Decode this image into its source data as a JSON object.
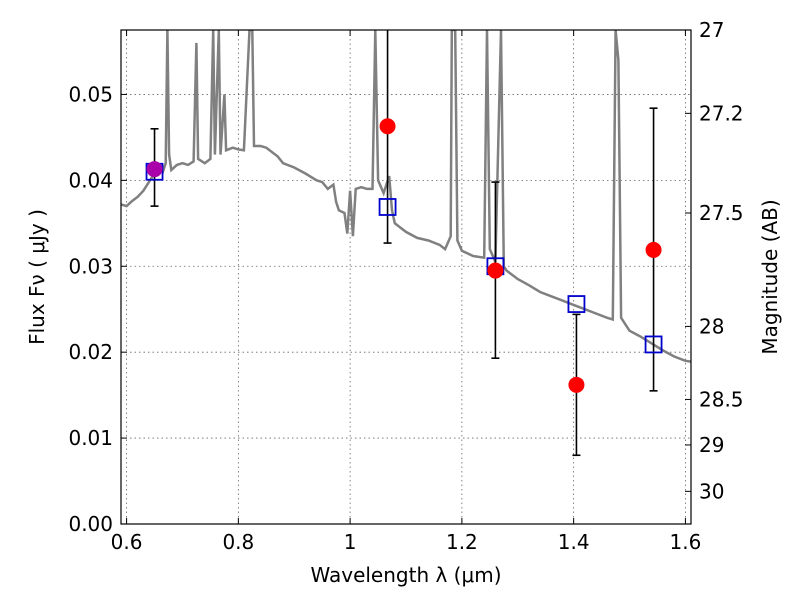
{
  "chart_data": {
    "type": "scatter",
    "xlabel": "Wavelength  λ (μm)",
    "ylabel_left": "Flux  Fν  ( μJy )",
    "ylabel_right": "Magnitude (AB)",
    "xlim": [
      0.59,
      1.61
    ],
    "ylim": [
      0,
      0.0575
    ],
    "grid": true,
    "x_ticks": [
      0.6,
      0.8,
      1.0,
      1.2,
      1.4,
      1.6
    ],
    "x_tick_labels": [
      "0.6",
      "0.8",
      "1",
      "1.2",
      "1.4",
      "1.6"
    ],
    "y_ticks": [
      0,
      0.01,
      0.02,
      0.03,
      0.04,
      0.05
    ],
    "y_tick_labels": [
      "0.00",
      "0.01",
      "0.02",
      "0.03",
      "0.04",
      "0.05"
    ],
    "right_ticks": [
      {
        "flux": 0.0575,
        "label": "27"
      },
      {
        "flux": 0.0478,
        "label": "27.2"
      },
      {
        "flux": 0.0362,
        "label": "27.5"
      },
      {
        "flux": 0.023,
        "label": "28"
      },
      {
        "flux": 0.0145,
        "label": "28.5"
      },
      {
        "flux": 0.0092,
        "label": "29"
      },
      {
        "flux": 0.0038,
        "label": "30"
      }
    ],
    "model_spectrum": {
      "color": "#808080",
      "points": [
        [
          0.59,
          0.0372
        ],
        [
          0.6,
          0.037
        ],
        [
          0.61,
          0.0376
        ],
        [
          0.62,
          0.0381
        ],
        [
          0.63,
          0.0388
        ],
        [
          0.64,
          0.0398
        ],
        [
          0.65,
          0.0408
        ],
        [
          0.655,
          0.0407
        ],
        [
          0.66,
          0.0414
        ],
        [
          0.665,
          0.041
        ],
        [
          0.67,
          0.042
        ],
        [
          0.673,
          0.0575
        ],
        [
          0.676,
          0.043
        ],
        [
          0.68,
          0.0412
        ],
        [
          0.69,
          0.0418
        ],
        [
          0.7,
          0.042
        ],
        [
          0.71,
          0.0418
        ],
        [
          0.72,
          0.0422
        ],
        [
          0.725,
          0.056
        ],
        [
          0.728,
          0.0425
        ],
        [
          0.74,
          0.042
        ],
        [
          0.75,
          0.0425
        ],
        [
          0.755,
          0.0575
        ],
        [
          0.758,
          0.043
        ],
        [
          0.765,
          0.0575
        ],
        [
          0.768,
          0.043
        ],
        [
          0.775,
          0.05
        ],
        [
          0.778,
          0.0435
        ],
        [
          0.79,
          0.0438
        ],
        [
          0.8,
          0.0436
        ],
        [
          0.81,
          0.0435
        ],
        [
          0.82,
          0.0575
        ],
        [
          0.825,
          0.0575
        ],
        [
          0.828,
          0.044
        ],
        [
          0.84,
          0.044
        ],
        [
          0.85,
          0.0438
        ],
        [
          0.87,
          0.0428
        ],
        [
          0.88,
          0.042
        ],
        [
          0.9,
          0.0415
        ],
        [
          0.92,
          0.0408
        ],
        [
          0.94,
          0.04
        ],
        [
          0.95,
          0.0398
        ],
        [
          0.96,
          0.039
        ],
        [
          0.97,
          0.0395
        ],
        [
          0.975,
          0.0375
        ],
        [
          0.98,
          0.0365
        ],
        [
          0.99,
          0.0362
        ],
        [
          0.995,
          0.0338
        ],
        [
          1.0,
          0.0388
        ],
        [
          1.005,
          0.0335
        ],
        [
          1.01,
          0.039
        ],
        [
          1.02,
          0.0392
        ],
        [
          1.03,
          0.039
        ],
        [
          1.04,
          0.039
        ],
        [
          1.045,
          0.0575
        ],
        [
          1.05,
          0.04
        ],
        [
          1.06,
          0.0385
        ],
        [
          1.07,
          0.0405
        ],
        [
          1.075,
          0.0365
        ],
        [
          1.08,
          0.035
        ],
        [
          1.09,
          0.0345
        ],
        [
          1.1,
          0.034
        ],
        [
          1.12,
          0.0333
        ],
        [
          1.14,
          0.033
        ],
        [
          1.16,
          0.0325
        ],
        [
          1.17,
          0.032
        ],
        [
          1.18,
          0.0335
        ],
        [
          1.182,
          0.0575
        ],
        [
          1.188,
          0.0575
        ],
        [
          1.192,
          0.033
        ],
        [
          1.2,
          0.0318
        ],
        [
          1.22,
          0.0312
        ],
        [
          1.24,
          0.031
        ],
        [
          1.245,
          0.0575
        ],
        [
          1.25,
          0.032
        ],
        [
          1.26,
          0.0305
        ],
        [
          1.27,
          0.0575
        ],
        [
          1.275,
          0.03
        ],
        [
          1.28,
          0.0295
        ],
        [
          1.3,
          0.0285
        ],
        [
          1.32,
          0.0278
        ],
        [
          1.34,
          0.027
        ],
        [
          1.36,
          0.0265
        ],
        [
          1.38,
          0.026
        ],
        [
          1.4,
          0.0255
        ],
        [
          1.42,
          0.025
        ],
        [
          1.44,
          0.0245
        ],
        [
          1.46,
          0.024
        ],
        [
          1.47,
          0.0238
        ],
        [
          1.475,
          0.0575
        ],
        [
          1.48,
          0.054
        ],
        [
          1.485,
          0.024
        ],
        [
          1.5,
          0.0225
        ],
        [
          1.52,
          0.0218
        ],
        [
          1.54,
          0.021
        ],
        [
          1.56,
          0.0202
        ],
        [
          1.58,
          0.0195
        ],
        [
          1.6,
          0.019
        ],
        [
          1.61,
          0.0189
        ]
      ]
    },
    "observed": {
      "color": "#ff0000",
      "points": [
        {
          "x": 0.65,
          "y": 0.0413,
          "err_low": 0.037,
          "err_high": 0.046
        },
        {
          "x": 1.067,
          "y": 0.0463,
          "err_low": 0.0327,
          "err_high": 0.0575
        },
        {
          "x": 1.26,
          "y": 0.0295,
          "err_low": 0.0193,
          "err_high": 0.0398
        },
        {
          "x": 1.405,
          "y": 0.0162,
          "err_low": 0.008,
          "err_high": 0.0244
        },
        {
          "x": 1.543,
          "y": 0.0319,
          "err_low": 0.0155,
          "err_high": 0.0484
        }
      ]
    },
    "model_photometry": {
      "color": "#0000cc",
      "points": [
        {
          "x": 0.65,
          "y": 0.041
        },
        {
          "x": 1.067,
          "y": 0.0369
        },
        {
          "x": 1.26,
          "y": 0.03
        },
        {
          "x": 1.405,
          "y": 0.0256
        },
        {
          "x": 1.543,
          "y": 0.0209
        }
      ]
    },
    "overlap_color": "#aa00aa"
  }
}
